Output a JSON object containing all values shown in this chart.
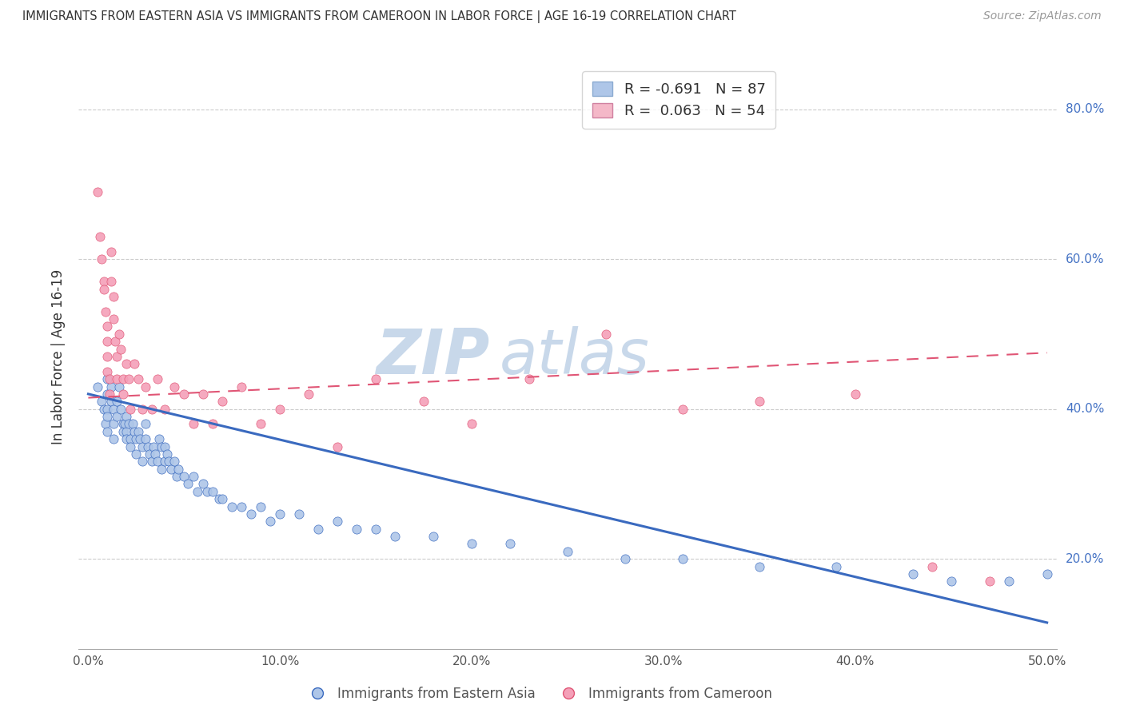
{
  "title": "IMMIGRANTS FROM EASTERN ASIA VS IMMIGRANTS FROM CAMEROON IN LABOR FORCE | AGE 16-19 CORRELATION CHART",
  "source": "Source: ZipAtlas.com",
  "ylabel": "In Labor Force | Age 16-19",
  "legend_blue_label": "R = -0.691   N = 87",
  "legend_pink_label": "R =  0.063   N = 54",
  "legend_blue_color": "#aec6e8",
  "legend_pink_color": "#f4b8c8",
  "scatter_blue_color": "#aec6e8",
  "scatter_pink_color": "#f4a0b8",
  "trend_blue_color": "#3a6abf",
  "trend_pink_color": "#e05575",
  "blue_trend_x": [
    0.0,
    0.5
  ],
  "blue_trend_y": [
    0.42,
    0.115
  ],
  "pink_trend_x": [
    0.0,
    0.5
  ],
  "pink_trend_y": [
    0.415,
    0.475
  ],
  "xlim": [
    -0.005,
    0.505
  ],
  "ylim": [
    0.08,
    0.86
  ],
  "yticks": [
    0.2,
    0.4,
    0.6,
    0.8
  ],
  "ytick_labels": [
    "20.0%",
    "40.0%",
    "60.0%",
    "80.0%"
  ],
  "xticks": [
    0.0,
    0.1,
    0.2,
    0.3,
    0.4,
    0.5
  ],
  "xtick_labels": [
    "0.0%",
    "10.0%",
    "20.0%",
    "30.0%",
    "40.0%",
    "50.0%"
  ],
  "grid_color": "#cccccc",
  "background_color": "#ffffff",
  "watermark_zip": "ZIP",
  "watermark_atlas": "atlas",
  "watermark_color": "#c8d8ea",
  "blue_scatter_x": [
    0.005,
    0.007,
    0.008,
    0.009,
    0.01,
    0.01,
    0.01,
    0.01,
    0.01,
    0.012,
    0.012,
    0.013,
    0.013,
    0.013,
    0.015,
    0.015,
    0.016,
    0.017,
    0.018,
    0.018,
    0.019,
    0.02,
    0.02,
    0.02,
    0.021,
    0.022,
    0.022,
    0.023,
    0.024,
    0.025,
    0.025,
    0.026,
    0.027,
    0.028,
    0.028,
    0.03,
    0.03,
    0.031,
    0.032,
    0.033,
    0.034,
    0.035,
    0.036,
    0.037,
    0.038,
    0.038,
    0.04,
    0.04,
    0.041,
    0.042,
    0.043,
    0.045,
    0.046,
    0.047,
    0.05,
    0.052,
    0.055,
    0.057,
    0.06,
    0.062,
    0.065,
    0.068,
    0.07,
    0.075,
    0.08,
    0.085,
    0.09,
    0.095,
    0.1,
    0.11,
    0.12,
    0.13,
    0.14,
    0.15,
    0.16,
    0.18,
    0.2,
    0.22,
    0.25,
    0.28,
    0.31,
    0.35,
    0.39,
    0.43,
    0.45,
    0.48,
    0.5
  ],
  "blue_scatter_y": [
    0.43,
    0.41,
    0.4,
    0.38,
    0.44,
    0.42,
    0.4,
    0.39,
    0.37,
    0.43,
    0.41,
    0.4,
    0.38,
    0.36,
    0.41,
    0.39,
    0.43,
    0.4,
    0.38,
    0.37,
    0.38,
    0.39,
    0.37,
    0.36,
    0.38,
    0.36,
    0.35,
    0.38,
    0.37,
    0.36,
    0.34,
    0.37,
    0.36,
    0.35,
    0.33,
    0.38,
    0.36,
    0.35,
    0.34,
    0.33,
    0.35,
    0.34,
    0.33,
    0.36,
    0.35,
    0.32,
    0.35,
    0.33,
    0.34,
    0.33,
    0.32,
    0.33,
    0.31,
    0.32,
    0.31,
    0.3,
    0.31,
    0.29,
    0.3,
    0.29,
    0.29,
    0.28,
    0.28,
    0.27,
    0.27,
    0.26,
    0.27,
    0.25,
    0.26,
    0.26,
    0.24,
    0.25,
    0.24,
    0.24,
    0.23,
    0.23,
    0.22,
    0.22,
    0.21,
    0.2,
    0.2,
    0.19,
    0.19,
    0.18,
    0.17,
    0.17,
    0.18
  ],
  "pink_scatter_x": [
    0.005,
    0.006,
    0.007,
    0.008,
    0.008,
    0.009,
    0.01,
    0.01,
    0.01,
    0.01,
    0.011,
    0.011,
    0.012,
    0.012,
    0.013,
    0.013,
    0.014,
    0.015,
    0.015,
    0.016,
    0.017,
    0.018,
    0.018,
    0.02,
    0.021,
    0.022,
    0.024,
    0.026,
    0.028,
    0.03,
    0.033,
    0.036,
    0.04,
    0.045,
    0.05,
    0.055,
    0.06,
    0.065,
    0.07,
    0.08,
    0.09,
    0.1,
    0.115,
    0.13,
    0.15,
    0.175,
    0.2,
    0.23,
    0.27,
    0.31,
    0.35,
    0.4,
    0.44,
    0.47
  ],
  "pink_scatter_y": [
    0.69,
    0.63,
    0.6,
    0.57,
    0.56,
    0.53,
    0.51,
    0.49,
    0.47,
    0.45,
    0.44,
    0.42,
    0.61,
    0.57,
    0.55,
    0.52,
    0.49,
    0.47,
    0.44,
    0.5,
    0.48,
    0.44,
    0.42,
    0.46,
    0.44,
    0.4,
    0.46,
    0.44,
    0.4,
    0.43,
    0.4,
    0.44,
    0.4,
    0.43,
    0.42,
    0.38,
    0.42,
    0.38,
    0.41,
    0.43,
    0.38,
    0.4,
    0.42,
    0.35,
    0.44,
    0.41,
    0.38,
    0.44,
    0.5,
    0.4,
    0.41,
    0.42,
    0.19,
    0.17
  ]
}
